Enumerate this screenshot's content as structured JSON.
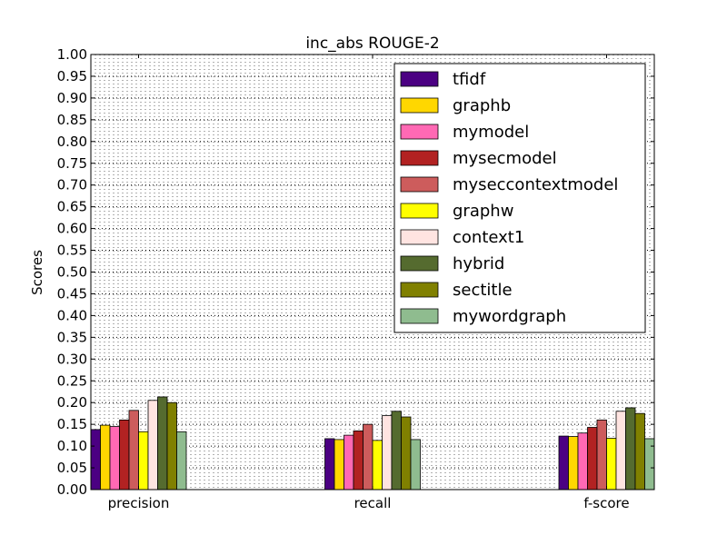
{
  "chart_data": {
    "type": "bar",
    "title": "inc_abs ROUGE-2",
    "xlabel": "",
    "ylabel": "Scores",
    "ylim": [
      0,
      1.0
    ],
    "y_ticks": [
      "0.00",
      "0.05",
      "0.10",
      "0.15",
      "0.20",
      "0.25",
      "0.30",
      "0.35",
      "0.40",
      "0.45",
      "0.50",
      "0.55",
      "0.60",
      "0.65",
      "0.70",
      "0.75",
      "0.80",
      "0.85",
      "0.90",
      "0.95",
      "1.00"
    ],
    "categories": [
      "precision",
      "recall",
      "f-score"
    ],
    "grid": true,
    "legend_position": "top-right",
    "series": [
      {
        "name": "tfidf",
        "color": "#4b0082",
        "values": [
          0.138,
          0.117,
          0.123
        ]
      },
      {
        "name": "graphb",
        "color": "#ffd700",
        "values": [
          0.148,
          0.115,
          0.122
        ]
      },
      {
        "name": "mymodel",
        "color": "#ff69b4",
        "values": [
          0.145,
          0.125,
          0.13
        ]
      },
      {
        "name": "mysecmodel",
        "color": "#b22222",
        "values": [
          0.16,
          0.135,
          0.143
        ]
      },
      {
        "name": "myseccontextmodel",
        "color": "#cd5c5c",
        "values": [
          0.182,
          0.15,
          0.16
        ]
      },
      {
        "name": "graphw",
        "color": "#ffff00",
        "values": [
          0.133,
          0.113,
          0.118
        ]
      },
      {
        "name": "context1",
        "color": "#ffe4e1",
        "values": [
          0.205,
          0.17,
          0.18
        ]
      },
      {
        "name": "hybrid",
        "color": "#556b2f",
        "values": [
          0.213,
          0.18,
          0.188
        ]
      },
      {
        "name": "sectitle",
        "color": "#808000",
        "values": [
          0.2,
          0.167,
          0.175
        ]
      },
      {
        "name": "mywordgraph",
        "color": "#8fbc8f",
        "values": [
          0.133,
          0.115,
          0.117
        ]
      }
    ]
  }
}
